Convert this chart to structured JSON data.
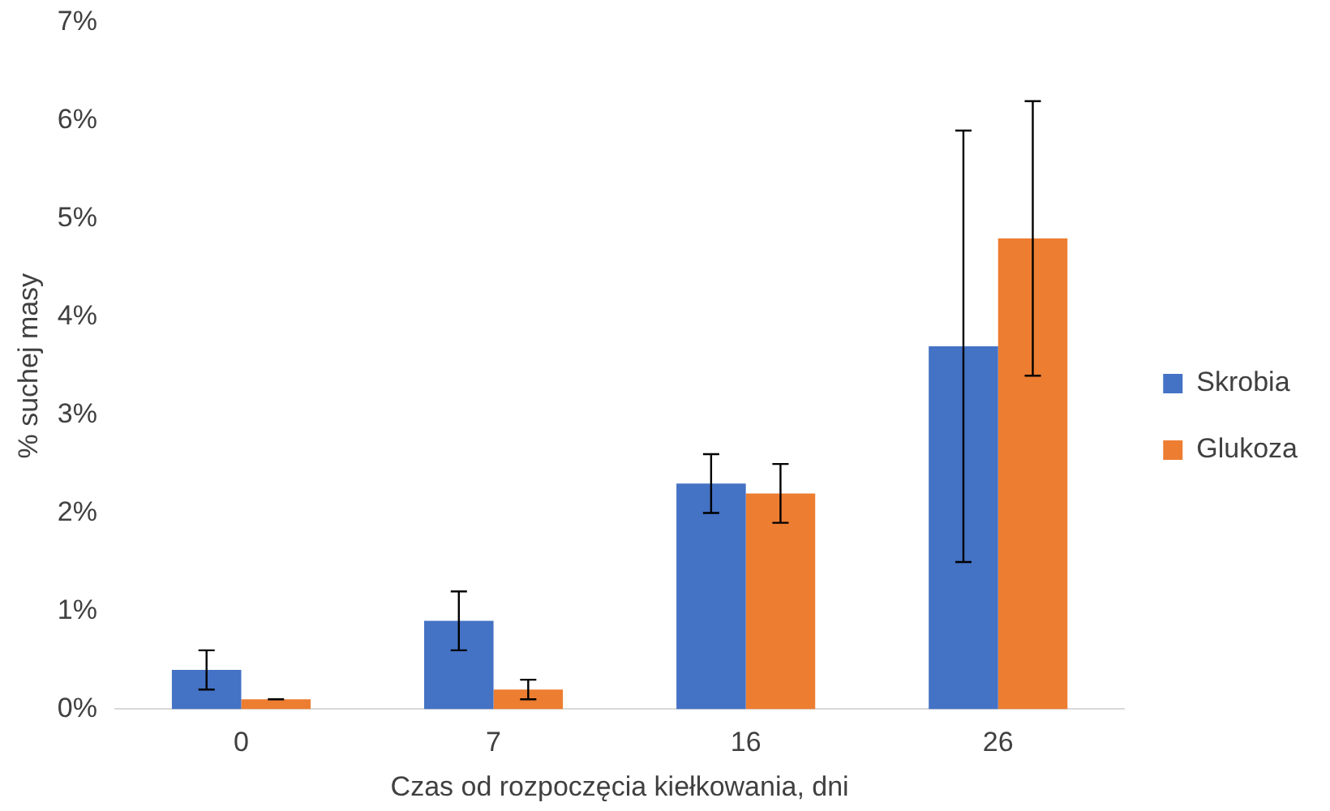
{
  "chart_data": {
    "type": "bar",
    "xlabel": "Czas od rozpoczęcia kiełkowania, dni",
    "ylabel": "% suchej masy",
    "categories": [
      "0",
      "7",
      "16",
      "26"
    ],
    "series": [
      {
        "name": "Skrobia",
        "color": "#4472c4",
        "values": [
          0.4,
          0.9,
          2.3,
          3.7
        ],
        "errors": [
          0.2,
          0.3,
          0.3,
          2.2
        ]
      },
      {
        "name": "Glukoza",
        "color": "#ed7d31",
        "values": [
          0.1,
          0.2,
          2.2,
          4.8
        ],
        "errors": [
          0,
          0.1,
          0.3,
          1.4
        ]
      }
    ],
    "ylim": [
      0,
      7
    ],
    "yticks": [
      {
        "value": 0,
        "label": "0%"
      },
      {
        "value": 1,
        "label": "1%"
      },
      {
        "value": 2,
        "label": "2%"
      },
      {
        "value": 3,
        "label": "3%"
      },
      {
        "value": 4,
        "label": "4%"
      },
      {
        "value": 5,
        "label": "5%"
      },
      {
        "value": 6,
        "label": "6%"
      },
      {
        "value": 7,
        "label": "7%"
      }
    ],
    "grid": false,
    "legend": "right"
  }
}
